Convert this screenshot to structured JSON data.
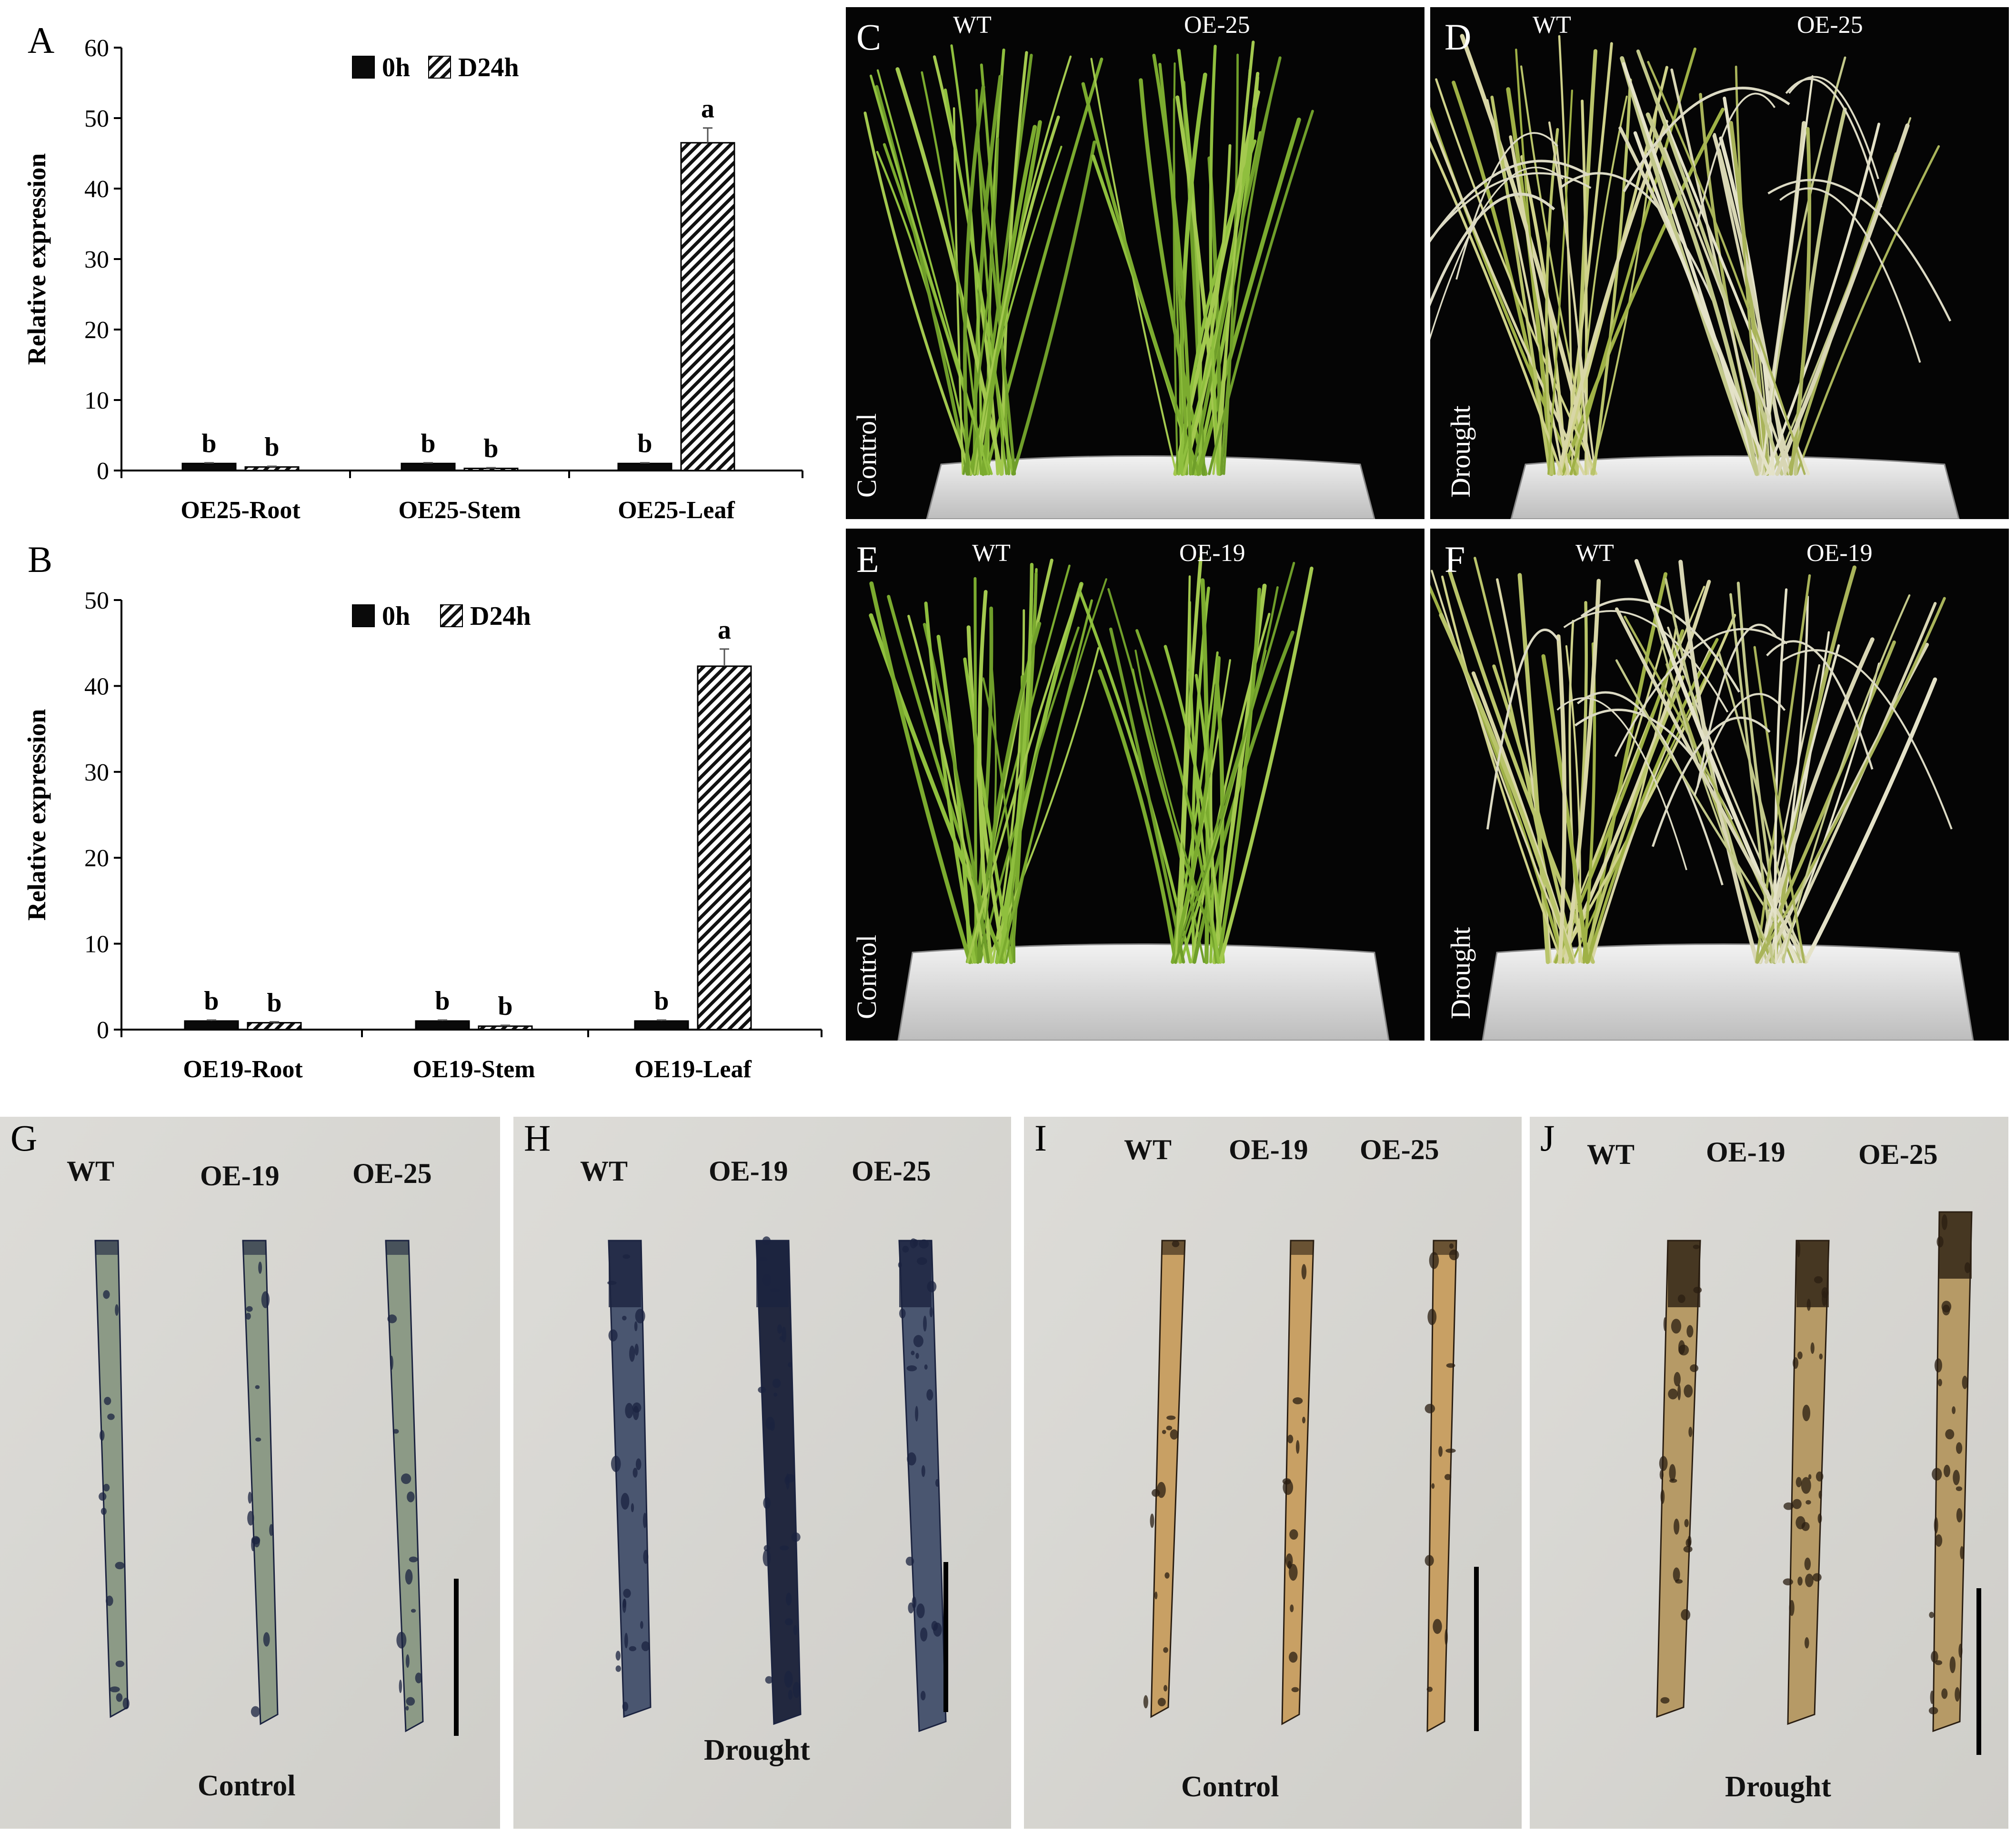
{
  "chart_data": [
    {
      "panel": "A",
      "type": "bar",
      "ylabel": "Relative expression",
      "ylim": [
        0,
        60
      ],
      "yticks": [
        0,
        10,
        20,
        30,
        40,
        50,
        60
      ],
      "categories": [
        "OE25-Root",
        "OE25-Stem",
        "OE25-Leaf"
      ],
      "series": [
        {
          "name": "0h",
          "values": [
            1.0,
            1.0,
            1.0
          ],
          "errors": [
            0.1,
            0.1,
            0.1
          ],
          "letters": [
            "b",
            "b",
            "b"
          ]
        },
        {
          "name": "D24h",
          "values": [
            0.5,
            0.3,
            46.5
          ],
          "errors": [
            0.1,
            0.1,
            2.1
          ],
          "letters": [
            "b",
            "b",
            "a"
          ]
        }
      ],
      "legend_position": "top-center",
      "grid": false
    },
    {
      "panel": "B",
      "type": "bar",
      "ylabel": "Relative expression",
      "ylim": [
        0,
        50
      ],
      "yticks": [
        0,
        10,
        20,
        30,
        40,
        50
      ],
      "categories": [
        "OE19-Root",
        "OE19-Stem",
        "OE19-Leaf"
      ],
      "series": [
        {
          "name": "0h",
          "values": [
            1.0,
            1.0,
            1.0
          ],
          "errors": [
            0.1,
            0.1,
            0.1
          ],
          "letters": [
            "b",
            "b",
            "b"
          ]
        },
        {
          "name": "D24h",
          "values": [
            0.8,
            0.4,
            42.3
          ],
          "errors": [
            0.1,
            0.1,
            2.0
          ],
          "letters": [
            "b",
            "b",
            "a"
          ]
        }
      ],
      "legend_position": "top-center",
      "grid": false
    }
  ],
  "photos": {
    "C": {
      "letter": "C",
      "left_label": "WT",
      "right_label": "OE-25",
      "condition": "Control"
    },
    "D": {
      "letter": "D",
      "left_label": "WT",
      "right_label": "OE-25",
      "condition": "Drought"
    },
    "E": {
      "letter": "E",
      "left_label": "WT",
      "right_label": "OE-19",
      "condition": "Control"
    },
    "F": {
      "letter": "F",
      "left_label": "WT",
      "right_label": "OE-19",
      "condition": "Drought"
    }
  },
  "stains": {
    "G": {
      "letter": "G",
      "labels": [
        "WT",
        "OE-19",
        "OE-25"
      ],
      "caption": "Control"
    },
    "H": {
      "letter": "H",
      "labels": [
        "WT",
        "OE-19",
        "OE-25"
      ],
      "caption": "Drought"
    },
    "I": {
      "letter": "I",
      "labels": [
        "WT",
        "OE-19",
        "OE-25"
      ],
      "caption": "Control"
    },
    "J": {
      "letter": "J",
      "labels": [
        "WT",
        "OE-19",
        "OE-25"
      ],
      "caption": "Drought"
    }
  },
  "colors": {
    "photo_bg": "#050505",
    "paper_gray": "#d9d8d3",
    "plant_green": "#8dbb3a",
    "nbt_blue": "#1f2a46",
    "dab_brown": "#c59a55"
  }
}
